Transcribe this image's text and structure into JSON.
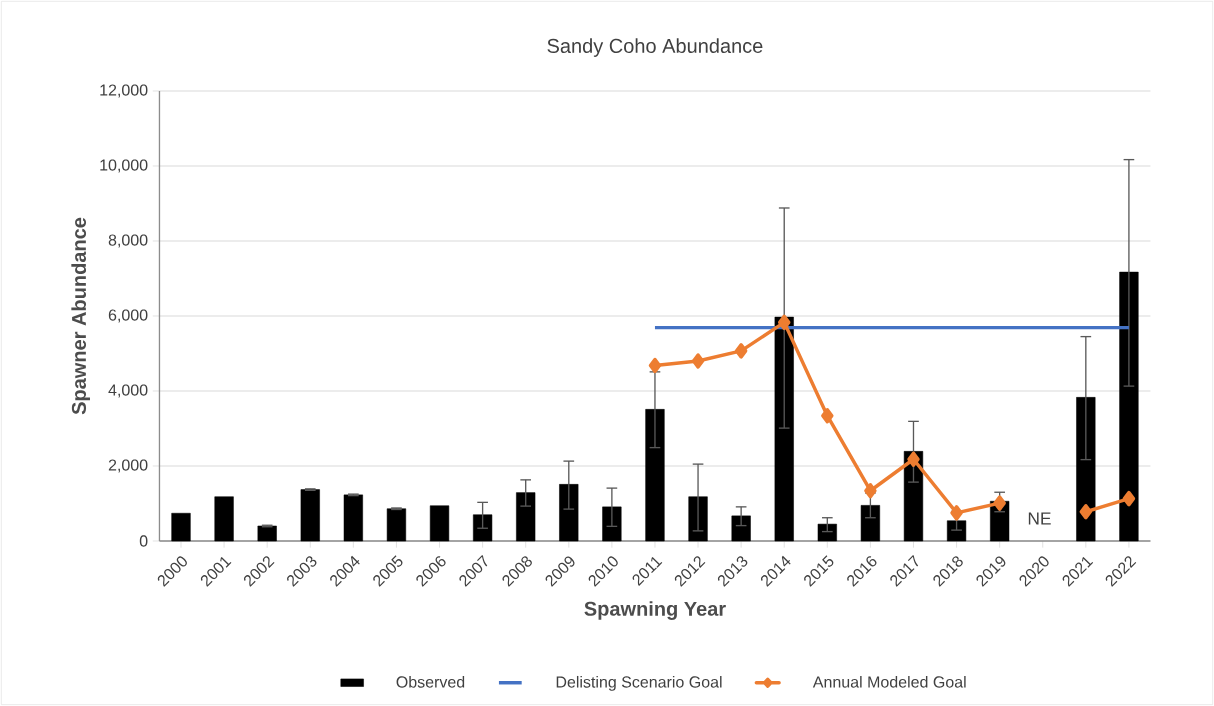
{
  "chart_data": {
    "type": "bar",
    "title": "Sandy Coho Abundance",
    "xlabel": "Spawning Year",
    "ylabel": "Spawner Abundance",
    "categories": [
      "2000",
      "2001",
      "2002",
      "2003",
      "2004",
      "2005",
      "2006",
      "2007",
      "2008",
      "2009",
      "2010",
      "2011",
      "2012",
      "2013",
      "2014",
      "2015",
      "2016",
      "2017",
      "2018",
      "2019",
      "2020",
      "2021",
      "2022"
    ],
    "series": [
      {
        "name": "Observed",
        "color": "#000000",
        "values": [
          740,
          1180,
          400,
          1370,
          1230,
          860,
          940,
          700,
          1290,
          1510,
          910,
          3510,
          1180,
          670,
          5970,
          450,
          950,
          2390,
          540,
          1060,
          null,
          3830,
          7170
        ],
        "errors": [
          null,
          null,
          20,
          20,
          20,
          20,
          null,
          [
            340,
            1030
          ],
          [
            930,
            1630
          ],
          [
            850,
            2130
          ],
          [
            390,
            1410
          ],
          [
            2490,
            4510
          ],
          [
            270,
            2050
          ],
          [
            410,
            910
          ],
          [
            3010,
            8880
          ],
          [
            250,
            620
          ],
          [
            620,
            1280
          ],
          [
            1570,
            3190
          ],
          [
            290,
            790
          ],
          [
            780,
            1300
          ],
          null,
          [
            2170,
            5450
          ],
          [
            4130,
            10170
          ]
        ]
      },
      {
        "name": "Delisting Scenario Goal",
        "type": "line",
        "color": "#4472c4",
        "marker": "none",
        "values": [
          null,
          null,
          null,
          null,
          null,
          null,
          null,
          null,
          null,
          null,
          null,
          5690,
          5690,
          5690,
          5690,
          5690,
          5690,
          5690,
          5690,
          5690,
          5690,
          5690,
          5690
        ]
      },
      {
        "name": "Annual Modeled Goal",
        "type": "line",
        "color": "#ed7d31",
        "marker": "diamond",
        "values": [
          null,
          null,
          null,
          null,
          null,
          null,
          null,
          null,
          null,
          null,
          null,
          4680,
          4800,
          5070,
          5830,
          3340,
          1340,
          2180,
          750,
          1010,
          null,
          780,
          1130
        ]
      }
    ],
    "ylim": [
      0,
      12000
    ],
    "yticks": [
      0,
      {
        "value": 2000,
        "label": "2,000"
      },
      {
        "value": 4000,
        "label": "4,000"
      },
      {
        "value": 6000,
        "label": "6,000"
      },
      {
        "value": 8000,
        "label": "8,000"
      },
      {
        "value": 10000,
        "label": "10,000"
      },
      {
        "value": 12000,
        "label": "12,000"
      }
    ],
    "grid": "y",
    "legend": "bottom",
    "annotations": [
      "NE"
    ]
  }
}
